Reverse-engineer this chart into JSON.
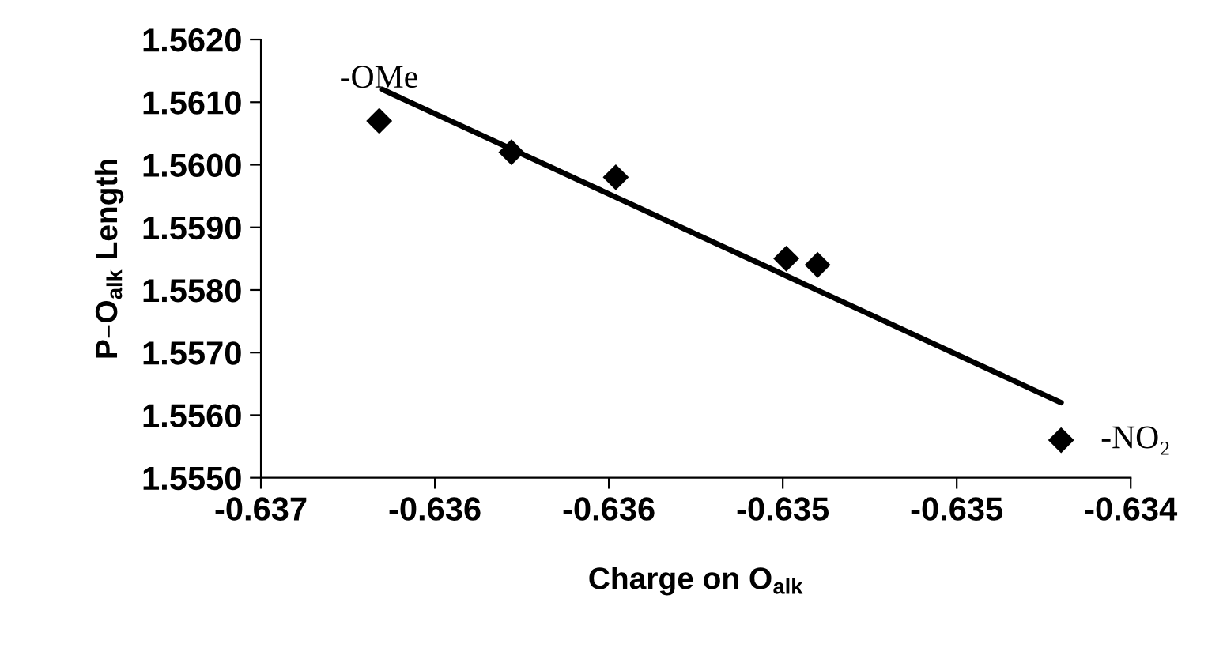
{
  "chart_data": {
    "type": "scatter",
    "xlabel": "Charge on O$_{alk}$",
    "ylabel": "P–O$_{alk}$ Length",
    "x": [
      -0.63616,
      -0.63578,
      -0.63548,
      -0.63499,
      -0.6349,
      -0.6342
    ],
    "series": [
      {
        "color": "#000000",
        "marker": "diamond",
        "values": [
          1.5607,
          1.5602,
          1.5598,
          1.5585,
          1.5584,
          1.5556
        ]
      },
      {
        "type": "line",
        "color": "#000000",
        "x": [
          -0.63615,
          -0.6342
        ],
        "values": [
          1.5612,
          1.5562
        ]
      }
    ],
    "xlim": [
      -0.6365,
      -0.634
    ],
    "ylim": [
      1.555,
      1.562
    ],
    "xticks": [
      {
        "value": -0.6365,
        "label": "-0.637"
      },
      {
        "value": -0.636,
        "label": "-0.636"
      },
      {
        "value": -0.6355,
        "label": "-0.636"
      },
      {
        "value": -0.635,
        "label": "-0.635"
      },
      {
        "value": -0.6345,
        "label": "-0.635"
      },
      {
        "value": -0.634,
        "label": "-0.634"
      }
    ],
    "yticks": [
      {
        "value": 1.555,
        "label": "1.5550"
      },
      {
        "value": 1.556,
        "label": "1.5560"
      },
      {
        "value": 1.557,
        "label": "1.5570"
      },
      {
        "value": 1.558,
        "label": "1.5580"
      },
      {
        "value": 1.559,
        "label": "1.5590"
      },
      {
        "value": 1.56,
        "label": "1.5600"
      },
      {
        "value": 1.561,
        "label": "1.5610"
      },
      {
        "value": 1.562,
        "label": "1.5620"
      }
    ],
    "annotations": [
      {
        "text": "-OMe",
        "x": -0.63616,
        "y": 1.5607
      },
      {
        "text": "-NO₂",
        "x": -0.6342,
        "y": 1.5556
      }
    ],
    "grid": false,
    "legend": false
  }
}
